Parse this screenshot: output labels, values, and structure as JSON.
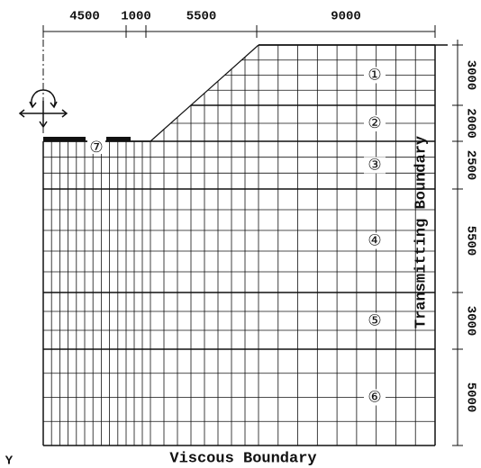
{
  "top_dimensions": [
    "4500",
    "1000",
    "5500",
    "9000"
  ],
  "right_dimensions": [
    "3000",
    "2000",
    "2500",
    "5500",
    "3000",
    "5000"
  ],
  "layers": [
    "①",
    "②",
    "③",
    "④",
    "⑤",
    "⑥"
  ],
  "foundation_label": "⑦",
  "right_boundary": "Transmitting Boundary",
  "bottom_boundary": "Viscous Boundary",
  "axis_label": "Y"
}
